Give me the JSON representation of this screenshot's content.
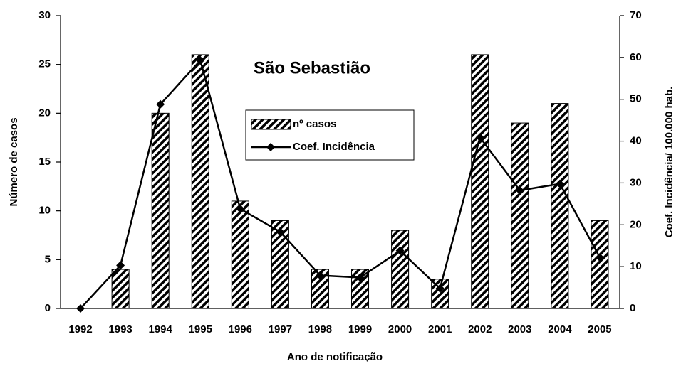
{
  "chart_data": {
    "type": "bar",
    "title": "São Sebastião",
    "xlabel": "Ano de notificação",
    "ylabel": "Número de casos",
    "y2label": "Coef. Incidência/ 100.000 hab.",
    "categories": [
      "1992",
      "1993",
      "1994",
      "1995",
      "1996",
      "1997",
      "1998",
      "1999",
      "2000",
      "2001",
      "2002",
      "2003",
      "2004",
      "2005"
    ],
    "series": [
      {
        "name": "nº casos",
        "type": "bar",
        "color": "#000000",
        "values": [
          0,
          4,
          20,
          26,
          11,
          9,
          4,
          4,
          8,
          3,
          26,
          19,
          21,
          9
        ]
      },
      {
        "name": "Coef. Incidência",
        "type": "line",
        "axis": "y2",
        "color": "#000000",
        "values": [
          0,
          10.3,
          48.8,
          59.3,
          23.8,
          18.3,
          7.9,
          7.4,
          13.8,
          4.8,
          40.9,
          28.2,
          29.8,
          12.2
        ]
      }
    ],
    "ylim": [
      0,
      30
    ],
    "yticks": [
      0,
      5,
      10,
      15,
      20,
      25,
      30
    ],
    "y2lim": [
      0,
      70
    ],
    "y2ticks": [
      0,
      10,
      20,
      30,
      40,
      50,
      60,
      70
    ],
    "grid": false
  }
}
